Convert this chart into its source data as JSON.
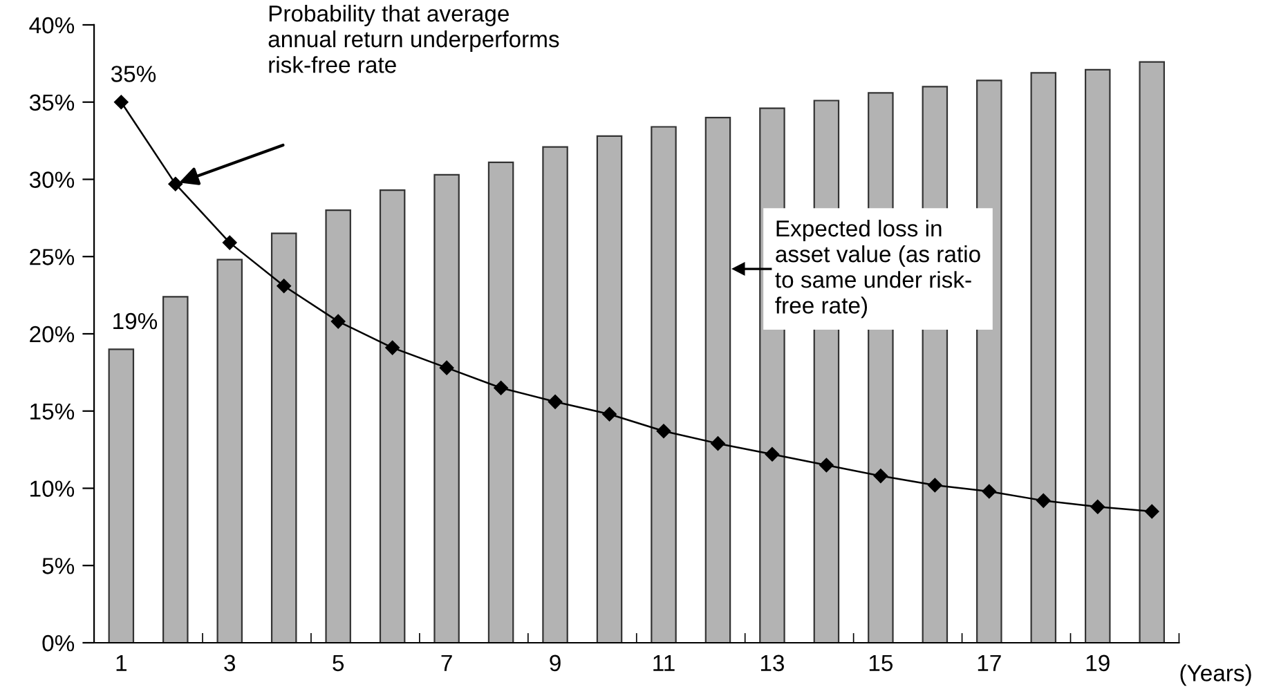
{
  "chart_data": {
    "type": "bar",
    "xlabel": "(Years)",
    "categories": [
      "1",
      null,
      "3",
      null,
      "5",
      null,
      "7",
      null,
      "9",
      null,
      "11",
      null,
      "13",
      null,
      "15",
      null,
      "17",
      null,
      "19",
      null
    ],
    "series": [
      {
        "color": "#b3b3b3",
        "values": [
          19,
          22.4,
          24.8,
          26.5,
          28,
          29.3,
          30.3,
          31.1,
          32.1,
          32.8,
          33.4,
          34,
          34.6,
          35.1,
          35.6,
          36,
          36.4,
          36.9,
          37.1,
          37.6
        ],
        "value_labels": [
          "19%",
          null,
          null,
          null,
          null,
          null,
          null,
          null,
          null,
          null,
          null,
          null,
          null,
          null,
          null,
          null,
          null,
          null,
          null,
          null
        ]
      },
      {
        "type": "line",
        "color": "#000000",
        "marker": "diamond",
        "line_style": "solid",
        "values": [
          35,
          29.7,
          25.9,
          23.1,
          20.8,
          19.1,
          17.8,
          16.5,
          15.6,
          14.8,
          13.7,
          12.9,
          12.2,
          11.5,
          10.8,
          10.2,
          9.8,
          9.2,
          8.8,
          8.5
        ],
        "value_labels": [
          "35%",
          null,
          null,
          null,
          null,
          null,
          null,
          null,
          null,
          null,
          null,
          null,
          null,
          null,
          null,
          null,
          null,
          null,
          null,
          null
        ]
      }
    ],
    "annotations": [
      "Probability that average\nannual return underperforms\nrisk-free rate",
      "Expected loss in\nasset value (as ratio\nto same under risk-\nfree rate)"
    ],
    "ylim": [
      0,
      40
    ],
    "yticks": [
      {
        "value": 0,
        "label": "0%"
      },
      {
        "value": 5,
        "label": "5%"
      },
      {
        "value": 10,
        "label": "10%"
      },
      {
        "value": 15,
        "label": "15%"
      },
      {
        "value": 20,
        "label": "20%"
      },
      {
        "value": 25,
        "label": "25%"
      },
      {
        "value": 30,
        "label": "30%"
      },
      {
        "value": 35,
        "label": "35%"
      },
      {
        "value": 40,
        "label": "40%"
      }
    ],
    "grid": false,
    "legend": false
  }
}
